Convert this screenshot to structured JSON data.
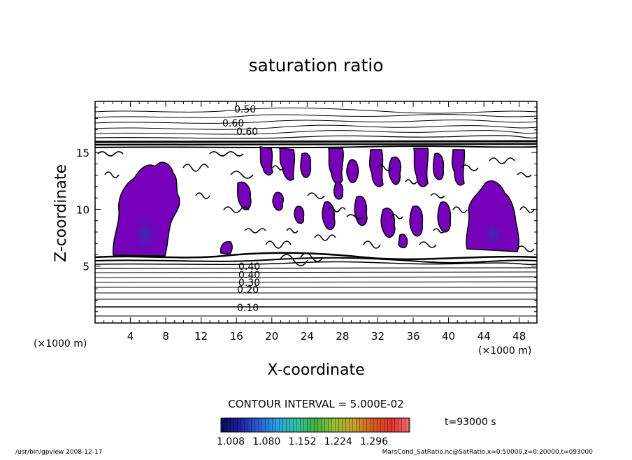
{
  "chart_data": {
    "type": "contour",
    "title": "saturation ratio",
    "xlabel": "X-coordinate",
    "ylabel": "Z-coordinate",
    "x_unit": "(×1000 m)",
    "z_unit": "(×1000 m)",
    "xlim": [
      0,
      50
    ],
    "ylim": [
      0,
      19.5
    ],
    "x_ticks": [
      4,
      8,
      12,
      16,
      20,
      24,
      28,
      32,
      36,
      40,
      44,
      48
    ],
    "y_ticks": [
      5,
      10,
      15
    ],
    "contour_labels": [
      {
        "text": "0.50",
        "x": 17.0,
        "z": 19.0
      },
      {
        "text": "0.60",
        "x": 15.3,
        "z": 18.0
      },
      {
        "text": "0.60",
        "x": 16.8,
        "z": 17.2
      },
      {
        "text": "0.40",
        "x": 17.4,
        "z": 5.2
      },
      {
        "text": "0.40",
        "x": 17.4,
        "z": 4.6
      },
      {
        "text": "0.30",
        "x": 17.4,
        "z": 3.9
      },
      {
        "text": "0.20",
        "x": 17.4,
        "z": 3.0
      },
      {
        "text": "0.10",
        "x": 17.4,
        "z": 1.4
      }
    ],
    "contour_interval_text": "CONTOUR INTERVAL = 5.000E-02",
    "colorbar": {
      "ticks": [
        "1.008",
        "1.080",
        "1.152",
        "1.224",
        "1.296"
      ],
      "colors": [
        "#0a0a55",
        "#1f1fa0",
        "#2b5fd0",
        "#2aa0e0",
        "#30c0a0",
        "#40b040",
        "#90c030",
        "#c8a030",
        "#d06020",
        "#e03030",
        "#f07070"
      ]
    },
    "time_label": "t=93000 s",
    "fill_color": "#7700bb"
  },
  "footer": {
    "left": "/usr/bin/gpview  2008-12-17",
    "right": "MarsCond_SatRatio.nc@SatRatio,x=0:50000,z=0:20000,t=093000"
  }
}
